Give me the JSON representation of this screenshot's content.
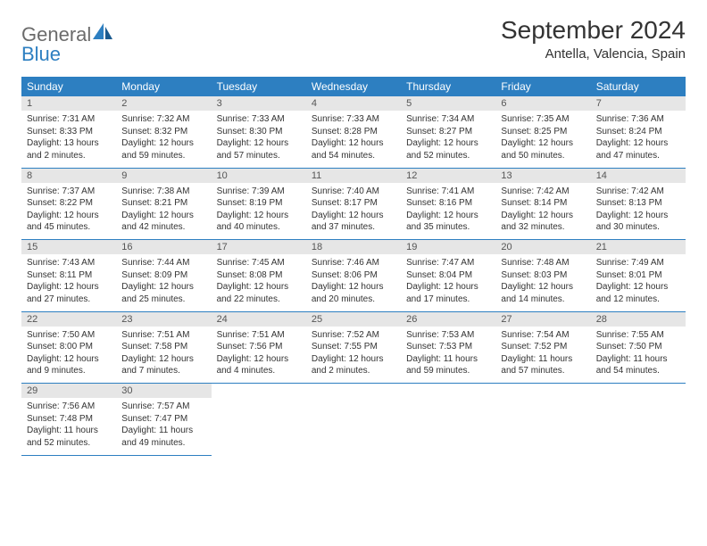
{
  "logo": {
    "general": "General",
    "blue": "Blue"
  },
  "title": "September 2024",
  "location": "Antella, Valencia, Spain",
  "colors": {
    "header_bg": "#2d7fc1",
    "header_text": "#ffffff",
    "daynum_bg": "#e6e6e6",
    "rule": "#2d7fc1",
    "text": "#333333",
    "logo_gray": "#6b6b6b",
    "logo_blue": "#2d7fc1"
  },
  "weekdays": [
    "Sunday",
    "Monday",
    "Tuesday",
    "Wednesday",
    "Thursday",
    "Friday",
    "Saturday"
  ],
  "weeks": [
    [
      {
        "n": "1",
        "sr": "Sunrise: 7:31 AM",
        "ss": "Sunset: 8:33 PM",
        "dl": "Daylight: 13 hours and 2 minutes."
      },
      {
        "n": "2",
        "sr": "Sunrise: 7:32 AM",
        "ss": "Sunset: 8:32 PM",
        "dl": "Daylight: 12 hours and 59 minutes."
      },
      {
        "n": "3",
        "sr": "Sunrise: 7:33 AM",
        "ss": "Sunset: 8:30 PM",
        "dl": "Daylight: 12 hours and 57 minutes."
      },
      {
        "n": "4",
        "sr": "Sunrise: 7:33 AM",
        "ss": "Sunset: 8:28 PM",
        "dl": "Daylight: 12 hours and 54 minutes."
      },
      {
        "n": "5",
        "sr": "Sunrise: 7:34 AM",
        "ss": "Sunset: 8:27 PM",
        "dl": "Daylight: 12 hours and 52 minutes."
      },
      {
        "n": "6",
        "sr": "Sunrise: 7:35 AM",
        "ss": "Sunset: 8:25 PM",
        "dl": "Daylight: 12 hours and 50 minutes."
      },
      {
        "n": "7",
        "sr": "Sunrise: 7:36 AM",
        "ss": "Sunset: 8:24 PM",
        "dl": "Daylight: 12 hours and 47 minutes."
      }
    ],
    [
      {
        "n": "8",
        "sr": "Sunrise: 7:37 AM",
        "ss": "Sunset: 8:22 PM",
        "dl": "Daylight: 12 hours and 45 minutes."
      },
      {
        "n": "9",
        "sr": "Sunrise: 7:38 AM",
        "ss": "Sunset: 8:21 PM",
        "dl": "Daylight: 12 hours and 42 minutes."
      },
      {
        "n": "10",
        "sr": "Sunrise: 7:39 AM",
        "ss": "Sunset: 8:19 PM",
        "dl": "Daylight: 12 hours and 40 minutes."
      },
      {
        "n": "11",
        "sr": "Sunrise: 7:40 AM",
        "ss": "Sunset: 8:17 PM",
        "dl": "Daylight: 12 hours and 37 minutes."
      },
      {
        "n": "12",
        "sr": "Sunrise: 7:41 AM",
        "ss": "Sunset: 8:16 PM",
        "dl": "Daylight: 12 hours and 35 minutes."
      },
      {
        "n": "13",
        "sr": "Sunrise: 7:42 AM",
        "ss": "Sunset: 8:14 PM",
        "dl": "Daylight: 12 hours and 32 minutes."
      },
      {
        "n": "14",
        "sr": "Sunrise: 7:42 AM",
        "ss": "Sunset: 8:13 PM",
        "dl": "Daylight: 12 hours and 30 minutes."
      }
    ],
    [
      {
        "n": "15",
        "sr": "Sunrise: 7:43 AM",
        "ss": "Sunset: 8:11 PM",
        "dl": "Daylight: 12 hours and 27 minutes."
      },
      {
        "n": "16",
        "sr": "Sunrise: 7:44 AM",
        "ss": "Sunset: 8:09 PM",
        "dl": "Daylight: 12 hours and 25 minutes."
      },
      {
        "n": "17",
        "sr": "Sunrise: 7:45 AM",
        "ss": "Sunset: 8:08 PM",
        "dl": "Daylight: 12 hours and 22 minutes."
      },
      {
        "n": "18",
        "sr": "Sunrise: 7:46 AM",
        "ss": "Sunset: 8:06 PM",
        "dl": "Daylight: 12 hours and 20 minutes."
      },
      {
        "n": "19",
        "sr": "Sunrise: 7:47 AM",
        "ss": "Sunset: 8:04 PM",
        "dl": "Daylight: 12 hours and 17 minutes."
      },
      {
        "n": "20",
        "sr": "Sunrise: 7:48 AM",
        "ss": "Sunset: 8:03 PM",
        "dl": "Daylight: 12 hours and 14 minutes."
      },
      {
        "n": "21",
        "sr": "Sunrise: 7:49 AM",
        "ss": "Sunset: 8:01 PM",
        "dl": "Daylight: 12 hours and 12 minutes."
      }
    ],
    [
      {
        "n": "22",
        "sr": "Sunrise: 7:50 AM",
        "ss": "Sunset: 8:00 PM",
        "dl": "Daylight: 12 hours and 9 minutes."
      },
      {
        "n": "23",
        "sr": "Sunrise: 7:51 AM",
        "ss": "Sunset: 7:58 PM",
        "dl": "Daylight: 12 hours and 7 minutes."
      },
      {
        "n": "24",
        "sr": "Sunrise: 7:51 AM",
        "ss": "Sunset: 7:56 PM",
        "dl": "Daylight: 12 hours and 4 minutes."
      },
      {
        "n": "25",
        "sr": "Sunrise: 7:52 AM",
        "ss": "Sunset: 7:55 PM",
        "dl": "Daylight: 12 hours and 2 minutes."
      },
      {
        "n": "26",
        "sr": "Sunrise: 7:53 AM",
        "ss": "Sunset: 7:53 PM",
        "dl": "Daylight: 11 hours and 59 minutes."
      },
      {
        "n": "27",
        "sr": "Sunrise: 7:54 AM",
        "ss": "Sunset: 7:52 PM",
        "dl": "Daylight: 11 hours and 57 minutes."
      },
      {
        "n": "28",
        "sr": "Sunrise: 7:55 AM",
        "ss": "Sunset: 7:50 PM",
        "dl": "Daylight: 11 hours and 54 minutes."
      }
    ],
    [
      {
        "n": "29",
        "sr": "Sunrise: 7:56 AM",
        "ss": "Sunset: 7:48 PM",
        "dl": "Daylight: 11 hours and 52 minutes."
      },
      {
        "n": "30",
        "sr": "Sunrise: 7:57 AM",
        "ss": "Sunset: 7:47 PM",
        "dl": "Daylight: 11 hours and 49 minutes."
      },
      null,
      null,
      null,
      null,
      null
    ]
  ]
}
